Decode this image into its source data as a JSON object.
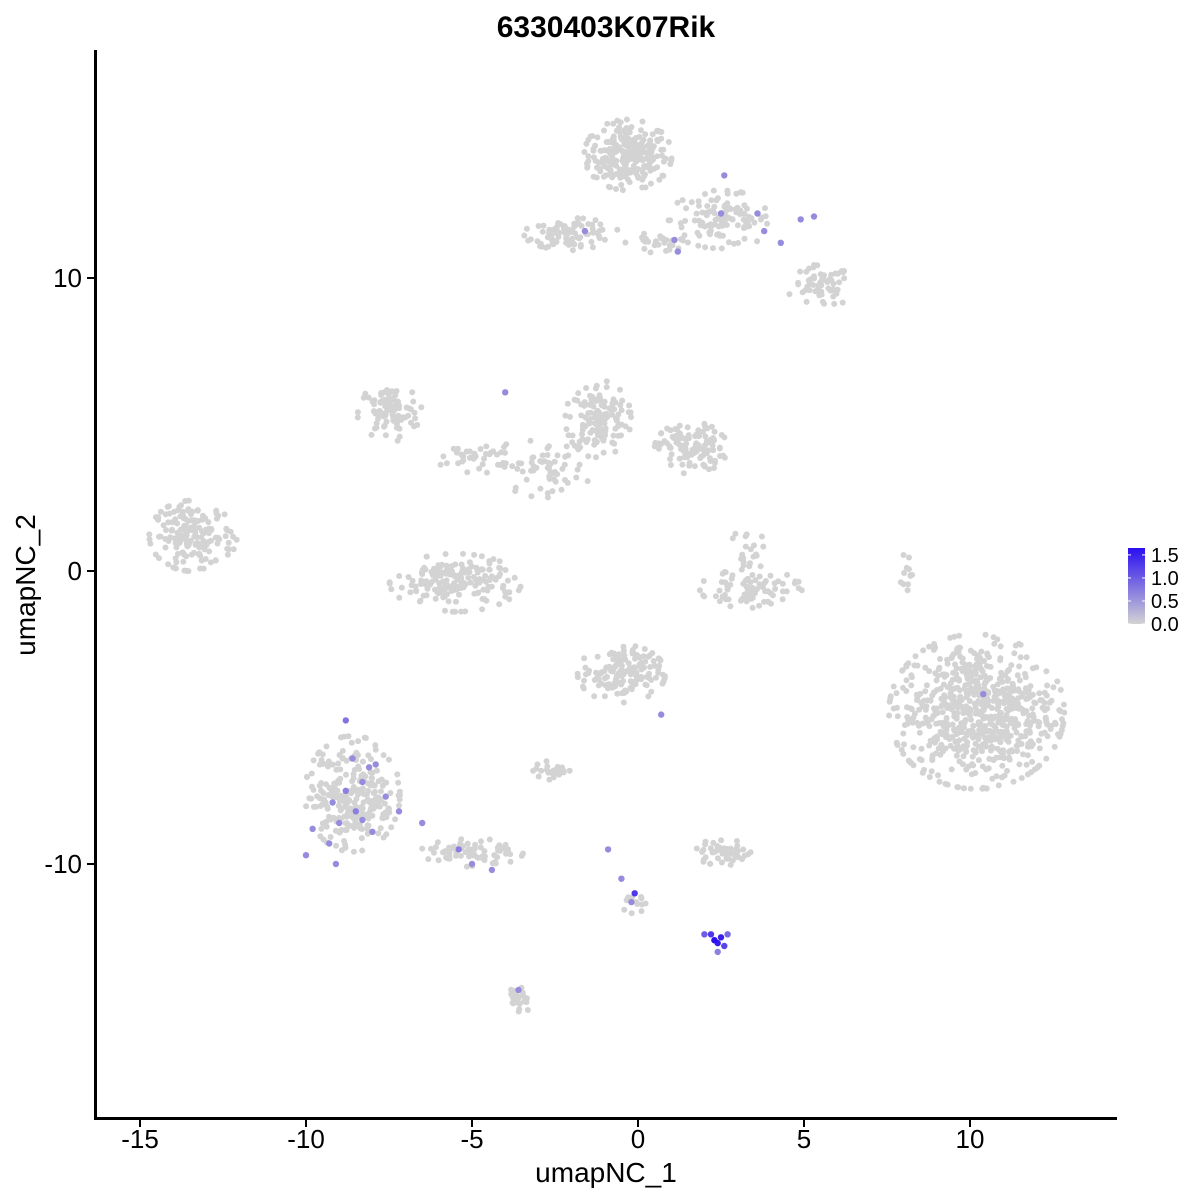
{
  "chart_data": {
    "type": "scatter",
    "title": "6330403K07Rik",
    "xlabel": "umapNC_1",
    "ylabel": "umapNC_2",
    "xlim": [
      -16.5,
      14.5
    ],
    "ylim": [
      -18.6,
      17.7
    ],
    "x_ticks": [
      -15,
      -10,
      -5,
      0,
      5,
      10
    ],
    "y_ticks": [
      -10,
      0,
      10
    ],
    "x_tick_labels": [
      "-15",
      "-10",
      "-5",
      "0",
      "5",
      "10"
    ],
    "y_tick_labels": [
      "-10",
      "0",
      "10"
    ],
    "grid": false,
    "color_scale": {
      "low_color": "#d3d3d3",
      "high_color": "#2a0ff0",
      "min": 0,
      "max": 1.65,
      "ticks": [
        0.0,
        0.5,
        1.0,
        1.5
      ],
      "tick_labels": [
        "0.0",
        "0.5",
        "1.0",
        "1.5"
      ]
    },
    "legend_position": "right",
    "background_clusters": [
      {
        "cx": -0.3,
        "cy": 14.2,
        "rx": 1.2,
        "ry": 1.1,
        "n": 260
      },
      {
        "cx": 2.5,
        "cy": 12.0,
        "rx": 1.5,
        "ry": 0.9,
        "n": 110
      },
      {
        "cx": 5.5,
        "cy": 9.7,
        "rx": 0.9,
        "ry": 0.7,
        "n": 60
      },
      {
        "cx": -2.0,
        "cy": 11.5,
        "rx": 1.3,
        "ry": 0.5,
        "n": 90
      },
      {
        "cx": 0.5,
        "cy": 11.2,
        "rx": 0.8,
        "ry": 0.3,
        "n": 25
      },
      {
        "cx": -7.5,
        "cy": 5.4,
        "rx": 0.9,
        "ry": 0.9,
        "n": 90
      },
      {
        "cx": -1.2,
        "cy": 5.2,
        "rx": 0.9,
        "ry": 1.2,
        "n": 140
      },
      {
        "cx": 1.6,
        "cy": 4.2,
        "rx": 1.0,
        "ry": 0.8,
        "n": 120
      },
      {
        "cx": -4.8,
        "cy": 3.9,
        "rx": 1.2,
        "ry": 0.5,
        "n": 40
      },
      {
        "cx": -2.8,
        "cy": 3.5,
        "rx": 1.3,
        "ry": 0.9,
        "n": 60
      },
      {
        "cx": -13.4,
        "cy": 1.2,
        "rx": 1.2,
        "ry": 1.1,
        "n": 170
      },
      {
        "cx": -5.5,
        "cy": -0.4,
        "rx": 1.8,
        "ry": 0.9,
        "n": 180
      },
      {
        "cx": 3.4,
        "cy": -0.6,
        "rx": 1.4,
        "ry": 0.6,
        "n": 80
      },
      {
        "cx": 3.3,
        "cy": 0.7,
        "rx": 0.5,
        "ry": 0.7,
        "n": 20
      },
      {
        "cx": -0.5,
        "cy": -3.5,
        "rx": 1.2,
        "ry": 0.9,
        "n": 150
      },
      {
        "cx": -2.5,
        "cy": -6.8,
        "rx": 0.6,
        "ry": 0.3,
        "n": 30
      },
      {
        "cx": 10.2,
        "cy": -4.8,
        "rx": 2.4,
        "ry": 2.4,
        "n": 700
      },
      {
        "cx": -8.6,
        "cy": -7.6,
        "rx": 1.3,
        "ry": 1.8,
        "n": 260
      },
      {
        "cx": -5.0,
        "cy": -9.6,
        "rx": 1.4,
        "ry": 0.5,
        "n": 70
      },
      {
        "cx": 2.6,
        "cy": -9.6,
        "rx": 0.9,
        "ry": 0.4,
        "n": 50
      },
      {
        "cx": -3.6,
        "cy": -14.7,
        "rx": 0.3,
        "ry": 0.5,
        "n": 25
      },
      {
        "cx": -0.1,
        "cy": -11.4,
        "rx": 0.3,
        "ry": 0.5,
        "n": 12
      },
      {
        "cx": 8.1,
        "cy": -0.2,
        "rx": 0.2,
        "ry": 0.8,
        "n": 12
      }
    ],
    "expressed_points": [
      {
        "x": 2.3,
        "y": -12.6,
        "value": 1.65
      },
      {
        "x": 2.4,
        "y": -12.7,
        "value": 1.55
      },
      {
        "x": 2.5,
        "y": -12.5,
        "value": 1.5
      },
      {
        "x": 2.2,
        "y": -12.4,
        "value": 1.3
      },
      {
        "x": 2.6,
        "y": -12.8,
        "value": 1.2
      },
      {
        "x": 2.0,
        "y": -12.4,
        "value": 1.0
      },
      {
        "x": 2.7,
        "y": -12.4,
        "value": 0.9
      },
      {
        "x": 2.4,
        "y": -13.0,
        "value": 0.7
      },
      {
        "x": -0.1,
        "y": -11.0,
        "value": 1.3
      },
      {
        "x": -0.2,
        "y": -11.3,
        "value": 0.6
      },
      {
        "x": -0.5,
        "y": -10.5,
        "value": 0.6
      },
      {
        "x": -0.9,
        "y": -9.5,
        "value": 0.6
      },
      {
        "x": -8.8,
        "y": -5.1,
        "value": 0.8
      },
      {
        "x": -8.1,
        "y": -6.7,
        "value": 0.6
      },
      {
        "x": -8.3,
        "y": -7.2,
        "value": 0.6
      },
      {
        "x": -8.8,
        "y": -7.5,
        "value": 0.7
      },
      {
        "x": -9.2,
        "y": -7.9,
        "value": 0.6
      },
      {
        "x": -8.5,
        "y": -8.2,
        "value": 0.7
      },
      {
        "x": -9.0,
        "y": -8.6,
        "value": 0.6
      },
      {
        "x": -9.8,
        "y": -8.8,
        "value": 0.6
      },
      {
        "x": -8.0,
        "y": -8.9,
        "value": 0.6
      },
      {
        "x": -9.3,
        "y": -9.3,
        "value": 0.6
      },
      {
        "x": -10.0,
        "y": -9.7,
        "value": 0.6
      },
      {
        "x": -9.1,
        "y": -10.0,
        "value": 0.6
      },
      {
        "x": -7.6,
        "y": -7.7,
        "value": 0.6
      },
      {
        "x": -7.2,
        "y": -8.2,
        "value": 0.6
      },
      {
        "x": -6.5,
        "y": -8.6,
        "value": 0.6
      },
      {
        "x": -5.4,
        "y": -9.5,
        "value": 0.7
      },
      {
        "x": -5.0,
        "y": -10.0,
        "value": 0.6
      },
      {
        "x": -4.4,
        "y": -10.2,
        "value": 0.6
      },
      {
        "x": -3.6,
        "y": -14.3,
        "value": 0.6
      },
      {
        "x": -8.6,
        "y": -6.4,
        "value": 0.6
      },
      {
        "x": -7.9,
        "y": -6.6,
        "value": 0.6
      },
      {
        "x": -8.3,
        "y": -8.5,
        "value": 0.6
      },
      {
        "x": 0.7,
        "y": -4.9,
        "value": 0.6
      },
      {
        "x": 10.4,
        "y": -4.2,
        "value": 0.6
      },
      {
        "x": -4.0,
        "y": 6.1,
        "value": 0.6
      },
      {
        "x": -1.6,
        "y": 11.6,
        "value": 0.6
      },
      {
        "x": 1.1,
        "y": 11.3,
        "value": 0.6
      },
      {
        "x": 2.5,
        "y": 12.2,
        "value": 0.6
      },
      {
        "x": 3.6,
        "y": 12.2,
        "value": 0.6
      },
      {
        "x": 4.9,
        "y": 12.0,
        "value": 0.6
      },
      {
        "x": 5.3,
        "y": 12.1,
        "value": 0.6
      },
      {
        "x": 3.8,
        "y": 11.6,
        "value": 0.6
      },
      {
        "x": 2.6,
        "y": 13.5,
        "value": 0.6
      },
      {
        "x": 1.2,
        "y": 10.9,
        "value": 0.6
      },
      {
        "x": 4.3,
        "y": 11.2,
        "value": 0.6
      }
    ]
  }
}
